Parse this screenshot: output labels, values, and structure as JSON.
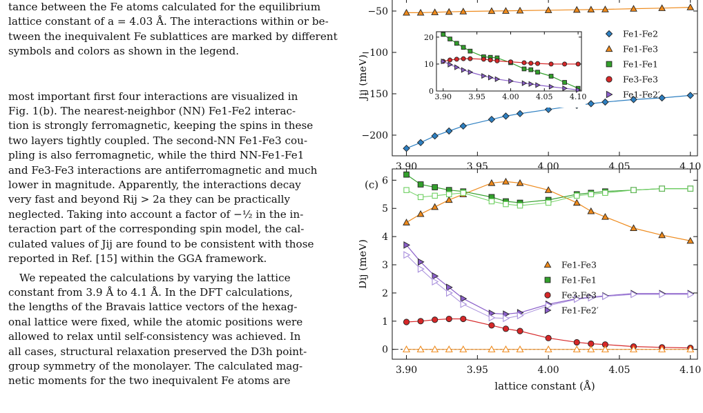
{
  "text_column": {
    "caption_tail": [
      "tance between the Fe atoms calculated for the equilibrium",
      "lattice constant of a = 4.03 Å. The interactions within or be-",
      "tween the inequivalent Fe sublattices are marked by different",
      "symbols and colors as shown in the legend."
    ],
    "para1": [
      "most important first four interactions are visualized in",
      "Fig. 1(b). The nearest-neighbor (NN) Fe1-Fe2 interac-",
      "tion is strongly ferromagnetic, keeping the spins in these",
      "two layers tightly coupled. The second-NN Fe1-Fe3 cou-",
      "pling is also ferromagnetic, while the third NN-Fe1-Fe1",
      "and Fe3-Fe3 interactions are antiferromagnetic and much",
      "lower in magnitude. Apparently, the interactions decay",
      "very fast and beyond Rij > 2a they can be practically",
      "neglected. Taking into account a factor of −½ in the in-",
      "teraction part of the corresponding spin model, the cal-",
      "culated values of Jij are found to be consistent with those",
      "reported in Ref. [15] within the GGA framework."
    ],
    "para2": [
      "We repeated the calculations by varying the lattice",
      "constant from 3.9 Å to 4.1 Å. In the DFT calculations,",
      "the lengths of the Bravais lattice vectors of the hexag-",
      "onal lattice were fixed, while the atomic positions were",
      "allowed to relax until self-consistency was achieved. In",
      "all cases, structural relaxation preserved the D3h point-",
      "group symmetry of the monolayer. The calculated mag-",
      "netic moments for the two inequivalent Fe atoms are"
    ]
  },
  "colors": {
    "blue": "#2d7fc1",
    "orange": "#ee8a1c",
    "green": "#33a02c",
    "red": "#d62728",
    "purple": "#8a5fc9",
    "light_purple": "#a88fdc",
    "light_green": "#6ccf5f"
  },
  "chart_data": [
    {
      "id": "top",
      "type": "scatter",
      "ylabel": "Jij (meV)",
      "xlim": [
        3.89,
        4.105
      ],
      "ylim": [
        -225,
        -35
      ],
      "xticks": [
        "3.90",
        "3.95",
        "4.00",
        "4.05",
        "4.10"
      ],
      "yticks": [
        "−50",
        "−100",
        "−150",
        "−200"
      ],
      "legend": [
        "Fe1-Fe2",
        "Fe1-Fe3",
        "Fe1-Fe1",
        "Fe3-Fe3",
        "Fe1-Fe2′"
      ],
      "x": [
        3.9,
        3.91,
        3.92,
        3.93,
        3.94,
        3.96,
        3.97,
        3.98,
        4.0,
        4.02,
        4.03,
        4.04,
        4.06,
        4.08,
        4.1
      ],
      "series": [
        {
          "name": "Fe1-Fe2",
          "marker": "diamond",
          "color": "blue",
          "values": [
            -216,
            -209,
            -201,
            -195,
            -189,
            -181,
            -177,
            -174,
            -169,
            -164,
            -162,
            -160,
            -157,
            -155,
            -152
          ]
        },
        {
          "name": "Fe1-Fe3",
          "marker": "triangle",
          "color": "orange",
          "values": [
            -52,
            -52,
            -51.5,
            -51,
            -50.5,
            -50,
            -49.8,
            -49.5,
            -49,
            -48.5,
            -48.2,
            -48,
            -47.2,
            -46.5,
            -45.5
          ]
        }
      ]
    },
    {
      "id": "inset",
      "type": "scatter",
      "xlim": [
        3.89,
        4.105
      ],
      "ylim": [
        0,
        22
      ],
      "xticks": [
        "3.90",
        "3.95",
        "4.00",
        "4.05",
        "4.10"
      ],
      "yticks": [
        "0",
        "10",
        "20"
      ],
      "x": [
        3.9,
        3.91,
        3.92,
        3.93,
        3.94,
        3.96,
        3.97,
        3.98,
        4.0,
        4.02,
        4.03,
        4.04,
        4.06,
        4.08,
        4.1
      ],
      "series": [
        {
          "name": "Fe1-Fe1",
          "marker": "square",
          "color": "green",
          "values": [
            21,
            19.3,
            17.7,
            16.2,
            14.8,
            12.7,
            12.5,
            12.3,
            10.5,
            8.2,
            7.9,
            7.0,
            5.5,
            3.2,
            1.0
          ]
        },
        {
          "name": "Fe3-Fe3",
          "marker": "circle",
          "color": "red",
          "values": [
            11,
            11.5,
            11.8,
            12,
            12,
            11.8,
            11.5,
            11.2,
            10.8,
            10.5,
            10.3,
            10.2,
            10.0,
            10.0,
            10.0
          ]
        },
        {
          "name": "Fe1-Fe2′",
          "marker": "triangle-right",
          "color": "purple",
          "values": [
            11,
            9.8,
            8.8,
            7.8,
            7.0,
            5.6,
            5.0,
            4.4,
            3.7,
            2.9,
            2.6,
            2.2,
            1.6,
            1.0,
            0.4
          ]
        }
      ]
    },
    {
      "id": "c",
      "type": "scatter",
      "panel_label": "(c)",
      "ylabel": "Dij (meV)",
      "xlabel": "lattice constant (Å)",
      "xlim": [
        3.89,
        4.105
      ],
      "ylim": [
        -0.35,
        6.4
      ],
      "xticks": [
        "3.90",
        "3.95",
        "4.00",
        "4.05",
        "4.10"
      ],
      "yticks": [
        "0",
        "1",
        "2",
        "3",
        "4",
        "5",
        "6"
      ],
      "legend": [
        "Fe1-Fe3",
        "Fe1-Fe1",
        "Fe3-Fe3",
        "Fe1-Fe2′"
      ],
      "x": [
        3.9,
        3.91,
        3.92,
        3.93,
        3.94,
        3.96,
        3.97,
        3.98,
        4.0,
        4.02,
        4.03,
        4.04,
        4.06,
        4.08,
        4.1
      ],
      "series": [
        {
          "name": "Fe1-Fe3",
          "marker": "triangle",
          "color": "orange",
          "values": [
            4.5,
            4.8,
            5.05,
            5.3,
            5.5,
            5.9,
            5.95,
            5.9,
            5.65,
            5.2,
            4.9,
            4.7,
            4.3,
            4.05,
            3.85
          ]
        },
        {
          "name": "Fe1-Fe1",
          "marker": "square",
          "color": "green",
          "values": [
            6.2,
            5.85,
            5.75,
            5.65,
            5.6,
            5.4,
            5.25,
            5.2,
            5.3,
            5.5,
            5.55,
            5.6,
            5.65,
            5.7,
            5.7
          ]
        },
        {
          "name": "Fe3-Fe3",
          "marker": "circle",
          "color": "red",
          "values": [
            0.97,
            1.0,
            1.05,
            1.08,
            1.08,
            0.85,
            0.73,
            0.65,
            0.4,
            0.25,
            0.2,
            0.17,
            0.1,
            0.07,
            0.05
          ]
        },
        {
          "name": "Fe1-Fe2′",
          "marker": "triangle-right",
          "color": "purple",
          "values": [
            3.7,
            3.1,
            2.6,
            2.2,
            1.8,
            1.28,
            1.25,
            1.3,
            1.6,
            1.8,
            1.85,
            1.9,
            1.98,
            1.98,
            1.98
          ]
        },
        {
          "name": "",
          "marker": "square-open",
          "color": "light_green",
          "values": [
            5.65,
            5.4,
            5.45,
            5.5,
            5.55,
            5.25,
            5.15,
            5.1,
            5.2,
            5.45,
            5.5,
            5.55,
            5.65,
            5.7,
            5.7
          ]
        },
        {
          "name": "",
          "marker": "triangle-right-open",
          "color": "light_purple",
          "values": [
            3.35,
            2.85,
            2.4,
            2.0,
            1.6,
            1.12,
            1.1,
            1.2,
            1.55,
            1.78,
            1.83,
            1.88,
            1.95,
            1.95,
            1.95
          ]
        },
        {
          "name": "",
          "marker": "triangle-open",
          "color": "orange",
          "values": [
            0,
            0,
            0,
            0,
            0,
            0,
            0,
            0,
            0,
            0,
            0,
            0,
            0,
            0,
            0
          ]
        }
      ]
    }
  ]
}
